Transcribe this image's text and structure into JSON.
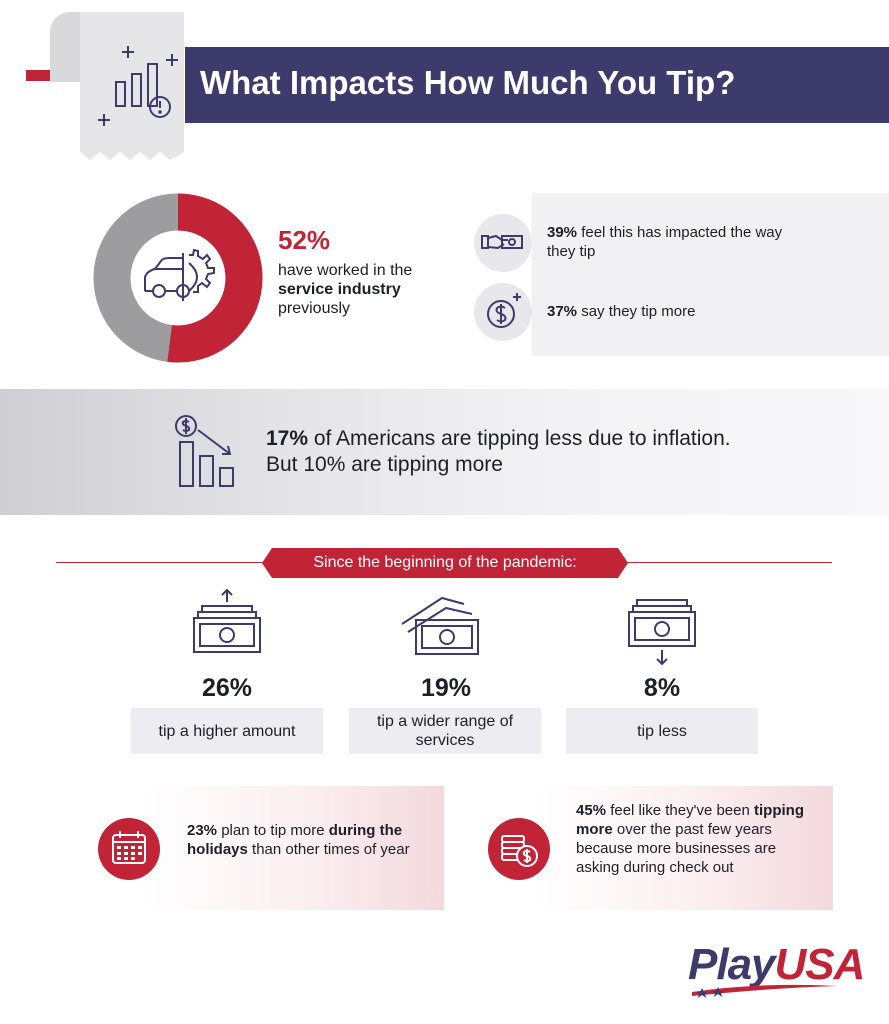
{
  "header": {
    "title": "What Impacts How Much You Tip?"
  },
  "service": {
    "percent": "52%",
    "desc_pre": "have worked in the",
    "desc_bold": "service industry",
    "desc_post": "previously",
    "donut_fraction": 0.52,
    "stats": [
      {
        "icon": "hand-cash-icon",
        "bold": "39%",
        "text": " feel this has impacted the way they tip"
      },
      {
        "icon": "dollar-coin-icon",
        "bold": "37%",
        "text": " say they tip more"
      }
    ]
  },
  "inflation": {
    "bold": "17%",
    "text": " of Americans are tipping less due to inflation. But 10% are tipping more"
  },
  "pandemic": {
    "label": "Since the beginning of the pandemic:",
    "items": [
      {
        "percent": "26%",
        "label": "tip a higher amount",
        "icon": "money-up-icon"
      },
      {
        "percent": "19%",
        "label": "tip a wider range of services",
        "icon": "money-stack-icon"
      },
      {
        "percent": "8%",
        "label": "tip less",
        "icon": "money-down-icon"
      }
    ]
  },
  "holidays": {
    "bold1": "23%",
    "text1": " plan to tip more ",
    "bold2": "during the holidays",
    "text2": " than other times of year",
    "icon": "calendar-icon"
  },
  "checkout": {
    "bold1": "45%",
    "text1": " feel like they've been ",
    "bold2": "tipping more",
    "text2": " over the past few years because more businesses are asking during check out",
    "icon": "coins-icon"
  },
  "logo": {
    "part1": "Play",
    "part2": "USA"
  },
  "colors": {
    "navy": "#3d3b6c",
    "red": "#c02436",
    "gray": "#9d9d9f"
  }
}
